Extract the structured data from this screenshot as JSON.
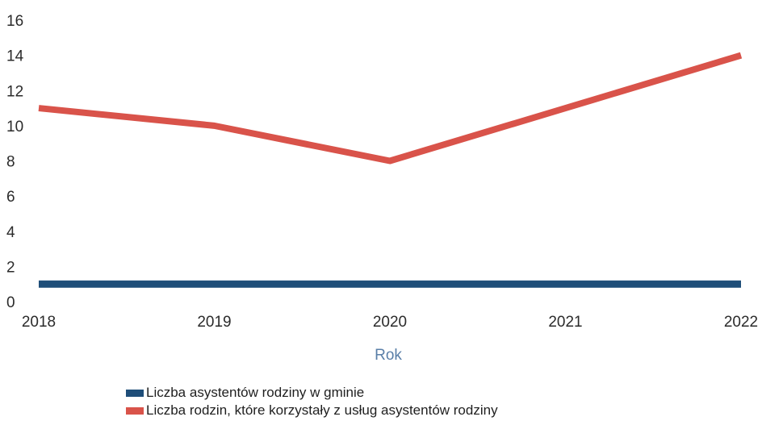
{
  "chart_data": {
    "type": "line",
    "x": [
      "2018",
      "2019",
      "2020",
      "2021",
      "2022"
    ],
    "xlabel": "Rok",
    "ylabel": "",
    "ylim": [
      0,
      16
    ],
    "yticks": [
      "0",
      "2",
      "4",
      "6",
      "8",
      "10",
      "12",
      "14",
      "16"
    ],
    "grid": false,
    "legend_position": "bottom",
    "series": [
      {
        "name": "Liczba asystentów rodziny w gminie",
        "values": [
          1,
          1,
          1,
          1,
          1
        ],
        "color": "#1f4e79"
      },
      {
        "name": "Liczba rodzin, które korzystały z usług asystentów rodziny",
        "values": [
          11,
          10,
          8,
          11,
          14
        ],
        "color": "#d9534a"
      }
    ]
  }
}
